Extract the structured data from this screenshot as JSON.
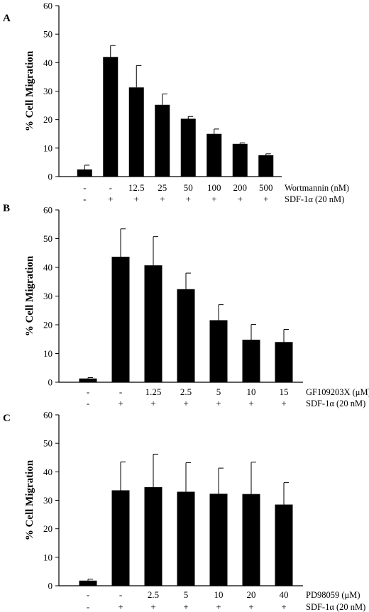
{
  "chart_data": [
    {
      "panel_letter": "A",
      "type": "bar",
      "ylabel": "% Cell Migration",
      "ylim": [
        0,
        60
      ],
      "yticks": [
        0,
        10,
        20,
        30,
        40,
        50,
        60
      ],
      "grid": false,
      "categories": [
        "-",
        "-",
        "12.5",
        "25",
        "50",
        "100",
        "200",
        "500"
      ],
      "treatment_label": "Wortmannin (nM)",
      "sdf_row": [
        "-",
        "+",
        "+",
        "+",
        "+",
        "+",
        "+",
        "+"
      ],
      "sdf_label": "SDF-1α (20 nM)",
      "values": [
        2.5,
        42,
        31.3,
        25.2,
        20.3,
        15,
        11.5,
        7.5
      ],
      "errors": [
        1.5,
        4,
        7.7,
        3.8,
        0.8,
        1.7,
        0.3,
        0.5
      ]
    },
    {
      "panel_letter": "B",
      "type": "bar",
      "ylabel": "% Cell Migration",
      "ylim": [
        0,
        60
      ],
      "yticks": [
        0,
        10,
        20,
        30,
        40,
        50,
        60
      ],
      "grid": false,
      "categories": [
        "-",
        "-",
        "1.25",
        "2.5",
        "5",
        "10",
        "15"
      ],
      "treatment_label": "GF109203X (μM)",
      "sdf_row": [
        "-",
        "+",
        "+",
        "+",
        "+",
        "+",
        "+"
      ],
      "sdf_label": "SDF-1α (20 nM)",
      "values": [
        1.3,
        43.7,
        40.7,
        32.4,
        21.6,
        14.8,
        14
      ],
      "errors": [
        0.3,
        9.7,
        10,
        5.6,
        5.4,
        5.3,
        4.4
      ]
    },
    {
      "panel_letter": "C",
      "type": "bar",
      "ylabel": "% Cell Migration",
      "ylim": [
        0,
        60
      ],
      "yticks": [
        0,
        10,
        20,
        30,
        40,
        50,
        60
      ],
      "grid": false,
      "categories": [
        "-",
        "-",
        "2.5",
        "5",
        "10",
        "20",
        "40"
      ],
      "treatment_label": "PD98059 (μM)",
      "sdf_row": [
        "-",
        "+",
        "+",
        "+",
        "+",
        "+",
        "+"
      ],
      "sdf_label": "SDF-1α (20 nM)",
      "values": [
        1.8,
        33.5,
        34.6,
        33,
        32.3,
        32.2,
        28.5
      ],
      "errors": [
        0.5,
        10,
        11.6,
        10.2,
        9,
        11.2,
        7.7
      ]
    }
  ]
}
